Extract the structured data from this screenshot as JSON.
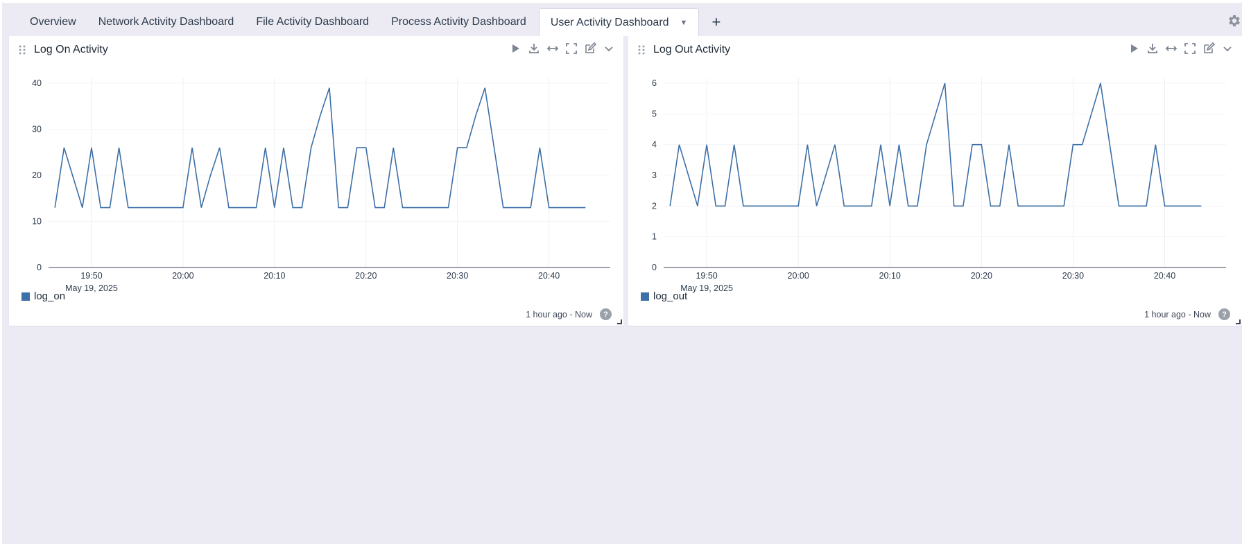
{
  "tabs": [
    {
      "label": "Overview",
      "active": false
    },
    {
      "label": "Network Activity Dashboard",
      "active": false
    },
    {
      "label": "File Activity Dashboard",
      "active": false
    },
    {
      "label": "Process Activity Dashboard",
      "active": false
    },
    {
      "label": "User Activity Dashboard",
      "active": true
    }
  ],
  "add_tab_label": "+",
  "icons": {
    "settings": "gear-icon",
    "drag": "drag-handle-icon",
    "tools": [
      "play-icon",
      "download-icon",
      "expand-horizontal-icon",
      "fullscreen-icon",
      "edit-icon",
      "chevron-down-icon"
    ],
    "help": "help-icon"
  },
  "colors": {
    "series": "#3d6fa8",
    "background": "#ecebf4"
  },
  "panels": [
    {
      "title": "Log On Activity",
      "legend": "log_on",
      "time_range": "1 hour ago - Now",
      "help_label": "?"
    },
    {
      "title": "Log Out Activity",
      "legend": "log_out",
      "time_range": "1 hour ago - Now",
      "help_label": "?"
    }
  ],
  "chart_data": [
    {
      "type": "line",
      "x_ticks": [
        "19:50",
        "20:00",
        "20:10",
        "20:20",
        "20:30",
        "20:40"
      ],
      "x_tick_minutes": [
        50,
        60,
        70,
        80,
        90,
        100
      ],
      "x_sublabel": "May 19, 2025",
      "xlim_minutes": [
        45.3,
        106.7
      ],
      "ylim": [
        0,
        40
      ],
      "y_ticks": [
        0,
        10,
        20,
        30,
        40
      ],
      "grid": true,
      "legend_position": "bottom-left",
      "series": [
        {
          "name": "log_on",
          "x_minutes": [
            46,
            47,
            49,
            50,
            51,
            52,
            53,
            54,
            55,
            56,
            57,
            58,
            59,
            60,
            61,
            62,
            63,
            64,
            65,
            66,
            67,
            68,
            69,
            70,
            71,
            72,
            73,
            74,
            75,
            76,
            77,
            78,
            79,
            80,
            81,
            82,
            83,
            84,
            85,
            86,
            87,
            88,
            89,
            90,
            91,
            92,
            93,
            94,
            95,
            96,
            97,
            98,
            99,
            100,
            101,
            102,
            103,
            104
          ],
          "values": [
            13,
            26,
            13,
            26,
            13,
            13,
            26,
            13,
            13,
            13,
            13,
            13,
            13,
            13,
            26,
            13,
            20,
            26,
            13,
            13,
            13,
            13,
            26,
            13,
            26,
            13,
            13,
            26,
            33,
            39,
            13,
            13,
            26,
            26,
            13,
            13,
            26,
            13,
            13,
            13,
            13,
            13,
            13,
            26,
            26,
            33,
            39,
            26,
            13,
            13,
            13,
            13,
            26,
            13,
            13,
            13,
            13,
            13
          ]
        }
      ]
    },
    {
      "type": "line",
      "x_ticks": [
        "19:50",
        "20:00",
        "20:10",
        "20:20",
        "20:30",
        "20:40"
      ],
      "x_tick_minutes": [
        50,
        60,
        70,
        80,
        90,
        100
      ],
      "x_sublabel": "May 19, 2025",
      "xlim_minutes": [
        45.3,
        106.7
      ],
      "ylim": [
        0,
        6
      ],
      "y_ticks": [
        0,
        1,
        2,
        3,
        4,
        5,
        6
      ],
      "grid": true,
      "legend_position": "bottom-left",
      "series": [
        {
          "name": "log_out",
          "x_minutes": [
            46,
            47,
            49,
            50,
            51,
            52,
            53,
            54,
            55,
            56,
            57,
            58,
            59,
            60,
            61,
            62,
            63,
            64,
            65,
            66,
            67,
            68,
            69,
            70,
            71,
            72,
            73,
            74,
            75,
            76,
            77,
            78,
            79,
            80,
            81,
            82,
            83,
            84,
            85,
            86,
            87,
            88,
            89,
            90,
            91,
            92,
            93,
            94,
            95,
            96,
            97,
            98,
            99,
            100,
            101,
            102,
            103,
            104
          ],
          "values": [
            2,
            4,
            2,
            4,
            2,
            2,
            4,
            2,
            2,
            2,
            2,
            2,
            2,
            2,
            4,
            2,
            3,
            4,
            2,
            2,
            2,
            2,
            4,
            2,
            4,
            2,
            2,
            4,
            5,
            6,
            2,
            2,
            4,
            4,
            2,
            2,
            4,
            2,
            2,
            2,
            2,
            2,
            2,
            4,
            4,
            5,
            6,
            4,
            2,
            2,
            2,
            2,
            4,
            2,
            2,
            2,
            2,
            2
          ]
        }
      ]
    }
  ]
}
